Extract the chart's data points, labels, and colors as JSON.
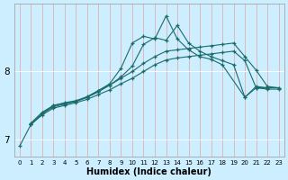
{
  "xlabel": "Humidex (Indice chaleur)",
  "bg_color": "#cceeff",
  "line_color": "#1a6b6b",
  "grid_color": "#e8e8e8",
  "xlim": [
    -0.5,
    23.5
  ],
  "ylim": [
    6.75,
    9.0
  ],
  "yticks": [
    7,
    8
  ],
  "xticks": [
    0,
    1,
    2,
    3,
    4,
    5,
    6,
    7,
    8,
    9,
    10,
    11,
    12,
    13,
    14,
    15,
    16,
    17,
    18,
    19,
    20,
    21,
    22,
    23
  ],
  "series": [
    {
      "x": [
        0,
        1,
        2,
        3,
        4,
        5,
        6,
        7,
        8,
        9,
        10,
        11,
        12,
        13,
        14,
        15,
        16,
        17,
        18,
        20,
        21,
        22
      ],
      "y": [
        6.9,
        7.22,
        7.38,
        7.48,
        7.52,
        7.56,
        7.62,
        7.72,
        7.82,
        8.05,
        8.42,
        8.52,
        8.48,
        8.82,
        8.48,
        8.32,
        8.22,
        8.18,
        8.1,
        7.62,
        7.76,
        7.76
      ]
    },
    {
      "x": [
        1,
        2,
        3,
        4,
        5,
        6,
        7,
        8,
        9,
        10,
        11,
        12,
        13,
        14,
        15,
        16,
        17,
        18,
        19,
        20,
        21,
        22,
        23
      ],
      "y": [
        7.22,
        7.38,
        7.5,
        7.53,
        7.56,
        7.62,
        7.7,
        7.8,
        7.92,
        8.08,
        8.4,
        8.5,
        8.46,
        8.68,
        8.42,
        8.3,
        8.22,
        8.16,
        8.1,
        7.62,
        7.78,
        7.76,
        7.76
      ]
    },
    {
      "x": [
        1,
        2,
        3,
        4,
        5,
        6,
        7,
        8,
        9,
        10,
        11,
        12,
        13,
        14,
        15,
        16,
        17,
        18,
        19,
        20,
        21,
        22,
        23
      ],
      "y": [
        7.24,
        7.4,
        7.5,
        7.54,
        7.57,
        7.63,
        7.72,
        7.8,
        7.9,
        8.0,
        8.12,
        8.22,
        8.3,
        8.32,
        8.34,
        8.36,
        8.38,
        8.4,
        8.42,
        8.22,
        8.02,
        7.78,
        7.76
      ]
    },
    {
      "x": [
        1,
        2,
        3,
        4,
        5,
        6,
        7,
        8,
        9,
        10,
        11,
        12,
        13,
        14,
        15,
        16,
        17,
        18,
        19,
        20,
        21,
        22,
        23
      ],
      "y": [
        7.22,
        7.36,
        7.46,
        7.5,
        7.54,
        7.59,
        7.66,
        7.73,
        7.82,
        7.9,
        8.0,
        8.1,
        8.17,
        8.2,
        8.22,
        8.24,
        8.26,
        8.28,
        8.3,
        8.16,
        7.76,
        7.74,
        7.74
      ]
    }
  ]
}
